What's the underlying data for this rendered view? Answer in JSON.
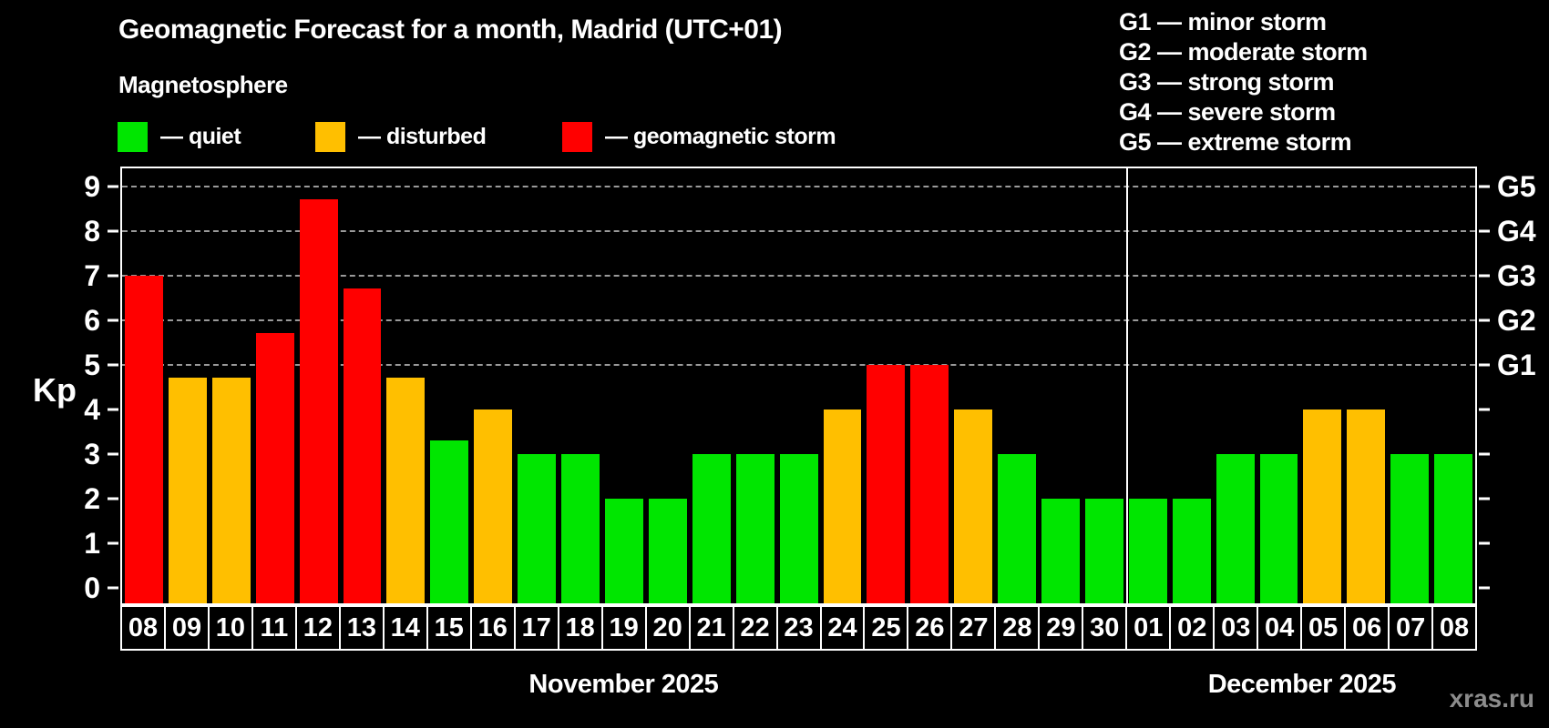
{
  "header": {
    "title": "Geomagnetic Forecast for a month, Madrid (UTC+01)",
    "subtitle": "Magnetosphere"
  },
  "legend": {
    "items": [
      {
        "key": "quiet",
        "label": "— quiet"
      },
      {
        "key": "disturbed",
        "label": "— disturbed"
      },
      {
        "key": "storm",
        "label": "— geomagnetic storm"
      }
    ]
  },
  "g_legend": {
    "lines": [
      "G1 — minor storm",
      "G2 — moderate storm",
      "G3 — strong storm",
      "G4 — severe storm",
      "G5 — extreme storm"
    ]
  },
  "colors": {
    "quiet": "#00e600",
    "disturbed": "#ffbf00",
    "storm": "#ff0000",
    "grid": "#9a9a9a",
    "frame": "#ffffff",
    "watermark": "#8c8c8c",
    "background": "#000000"
  },
  "axis": {
    "y_label": "Kp",
    "y_ticks": [
      0,
      1,
      2,
      3,
      4,
      5,
      6,
      7,
      8,
      9
    ],
    "right_labels": [
      {
        "level": 5,
        "label": "G1"
      },
      {
        "level": 6,
        "label": "G2"
      },
      {
        "level": 7,
        "label": "G3"
      },
      {
        "level": 8,
        "label": "G4"
      },
      {
        "level": 9,
        "label": "G5"
      }
    ],
    "grid_levels": [
      5,
      6,
      7,
      8,
      9
    ],
    "y_bottom": -0.35,
    "y_top": 9.4
  },
  "months": [
    {
      "label": "November 2025",
      "days": 23
    },
    {
      "label": "December 2025",
      "days": 8
    }
  ],
  "watermark": "xras.ru",
  "chart_data": {
    "type": "bar",
    "title": "Geomagnetic Forecast for a month, Madrid (UTC+01)",
    "xlabel": "",
    "ylabel": "Kp",
    "ylim": [
      0,
      9
    ],
    "grid": "dashed horizontal lines at Kp 5-9 (G1-G5 levels)",
    "legend_position": "top-left",
    "categories": [
      "08",
      "09",
      "10",
      "11",
      "12",
      "13",
      "14",
      "15",
      "16",
      "17",
      "18",
      "19",
      "20",
      "21",
      "22",
      "23",
      "24",
      "25",
      "26",
      "27",
      "28",
      "29",
      "30",
      "01",
      "02",
      "03",
      "04",
      "05",
      "06",
      "07",
      "08"
    ],
    "values": [
      7.0,
      4.7,
      4.7,
      5.7,
      8.7,
      6.7,
      4.7,
      3.3,
      4.0,
      3.0,
      3.0,
      2.0,
      2.0,
      3.0,
      3.0,
      3.0,
      4.0,
      5.0,
      5.0,
      4.0,
      3.0,
      2.0,
      2.0,
      2.0,
      2.0,
      3.0,
      3.0,
      4.0,
      4.0,
      3.0,
      3.0
    ],
    "statuses": [
      "storm",
      "disturbed",
      "disturbed",
      "storm",
      "storm",
      "storm",
      "disturbed",
      "quiet",
      "disturbed",
      "quiet",
      "quiet",
      "quiet",
      "quiet",
      "quiet",
      "quiet",
      "quiet",
      "disturbed",
      "storm",
      "storm",
      "disturbed",
      "quiet",
      "quiet",
      "quiet",
      "quiet",
      "quiet",
      "quiet",
      "quiet",
      "disturbed",
      "disturbed",
      "quiet",
      "quiet"
    ]
  }
}
